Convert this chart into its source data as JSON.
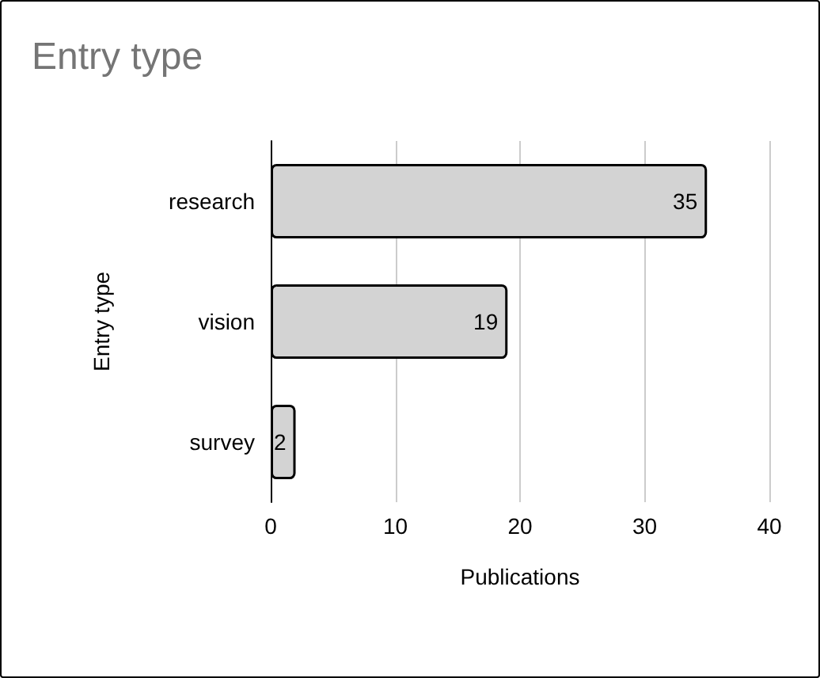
{
  "chart_data": {
    "type": "bar",
    "orientation": "horizontal",
    "title": "Entry type",
    "xlabel": "Publications",
    "ylabel": "Entry type",
    "categories": [
      "research",
      "vision",
      "survey"
    ],
    "values": [
      35,
      19,
      2
    ],
    "color": "#d3d3d3",
    "xlim": [
      0,
      40
    ],
    "xticks": [
      0,
      10,
      20,
      30,
      40
    ],
    "grid": "x",
    "data_labels": true
  }
}
